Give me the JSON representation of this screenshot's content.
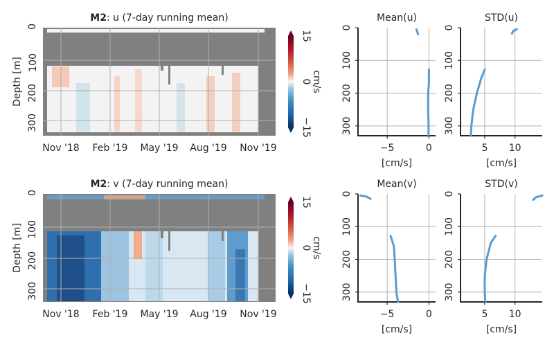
{
  "colors": {
    "nan_gray": "#808080",
    "profile_line": "#5a9bd0",
    "cmap_neg": "#053061",
    "cmap_zero": "#f7f7f7",
    "cmap_pos": "#67001f"
  },
  "colorbar": {
    "unit": "cm/s",
    "ticks": [
      "15",
      "0",
      "−15"
    ],
    "min": -15,
    "max": 15
  },
  "chart_data": [
    {
      "type": "heatmap",
      "title_bold": "M2",
      "title_rest": ": u (7-day running mean)",
      "ylabel": "Depth [m]",
      "yticks": [
        "0",
        "100",
        "200",
        "300"
      ],
      "xticks": [
        "Nov '18",
        "Feb '19",
        "May '19",
        "Aug '19",
        "Nov '19"
      ],
      "ylim": [
        0,
        330
      ],
      "data_gap_depth_m": [
        30,
        120
      ],
      "value_range_cm_s": [
        -3,
        4
      ]
    },
    {
      "type": "line",
      "title": "Mean(u)",
      "xlabel": "[cm/s]",
      "xticks": [
        "−5",
        "0"
      ],
      "yticks": [
        "0",
        "100",
        "200",
        "300"
      ],
      "xlim": [
        -8.5,
        0.8
      ],
      "ylim": [
        0,
        330
      ],
      "series": [
        {
          "x": [
            -1.5,
            -1.4,
            -1.3
          ],
          "y": [
            5,
            12,
            20
          ]
        },
        {
          "x": [
            0.0,
            0.0,
            -0.1,
            -0.1,
            -0.05,
            -0.05
          ],
          "y": [
            128,
            170,
            200,
            250,
            290,
            330
          ]
        }
      ]
    },
    {
      "type": "line",
      "title": "STD(u)",
      "xlabel": "[cm/s]",
      "xticks": [
        "5",
        "10"
      ],
      "yticks": [
        "0",
        "100",
        "200",
        "300"
      ],
      "xlim": [
        1,
        14.5
      ],
      "ylim": [
        0,
        330
      ],
      "series": [
        {
          "x": [
            9.5,
            9.7,
            10.3
          ],
          "y": [
            18,
            10,
            5
          ]
        },
        {
          "x": [
            5.0,
            4.5,
            3.7,
            3.1,
            2.8,
            2.7
          ],
          "y": [
            128,
            150,
            200,
            250,
            300,
            330
          ]
        }
      ]
    },
    {
      "type": "heatmap",
      "title_bold": "M2",
      "title_rest": ": v (7-day running mean)",
      "ylabel": "Depth [m]",
      "yticks": [
        "0",
        "100",
        "200",
        "300"
      ],
      "xticks": [
        "Nov '18",
        "Feb '19",
        "May '19",
        "Aug '19",
        "Nov '19"
      ],
      "ylim": [
        0,
        330
      ],
      "data_gap_depth_m": [
        30,
        120
      ],
      "value_range_cm_s": [
        -15,
        6
      ]
    },
    {
      "type": "line",
      "title": "Mean(v)",
      "xlabel": "[cm/s]",
      "xticks": [
        "−5",
        "0"
      ],
      "yticks": [
        "0",
        "100",
        "200",
        "300"
      ],
      "xlim": [
        -8.5,
        0.8
      ],
      "ylim": [
        0,
        330
      ],
      "series": [
        {
          "x": [
            -8.2,
            -7.5,
            -7.0
          ],
          "y": [
            5,
            8,
            15
          ]
        },
        {
          "x": [
            -4.6,
            -4.2,
            -4.1,
            -4.0,
            -3.9,
            -3.7
          ],
          "y": [
            128,
            160,
            200,
            250,
            300,
            330
          ]
        }
      ]
    },
    {
      "type": "line",
      "title": "STD(v)",
      "xlabel": "[cm/s]",
      "xticks": [
        "5",
        "10"
      ],
      "yticks": [
        "0",
        "100",
        "200",
        "300"
      ],
      "xlim": [
        1,
        14.5
      ],
      "ylim": [
        0,
        330
      ],
      "series": [
        {
          "x": [
            13.0,
            13.5,
            14.5
          ],
          "y": [
            18,
            10,
            5
          ]
        },
        {
          "x": [
            6.8,
            6.0,
            5.3,
            5.0,
            5.0,
            5.1
          ],
          "y": [
            128,
            150,
            200,
            250,
            300,
            330
          ]
        }
      ]
    }
  ]
}
